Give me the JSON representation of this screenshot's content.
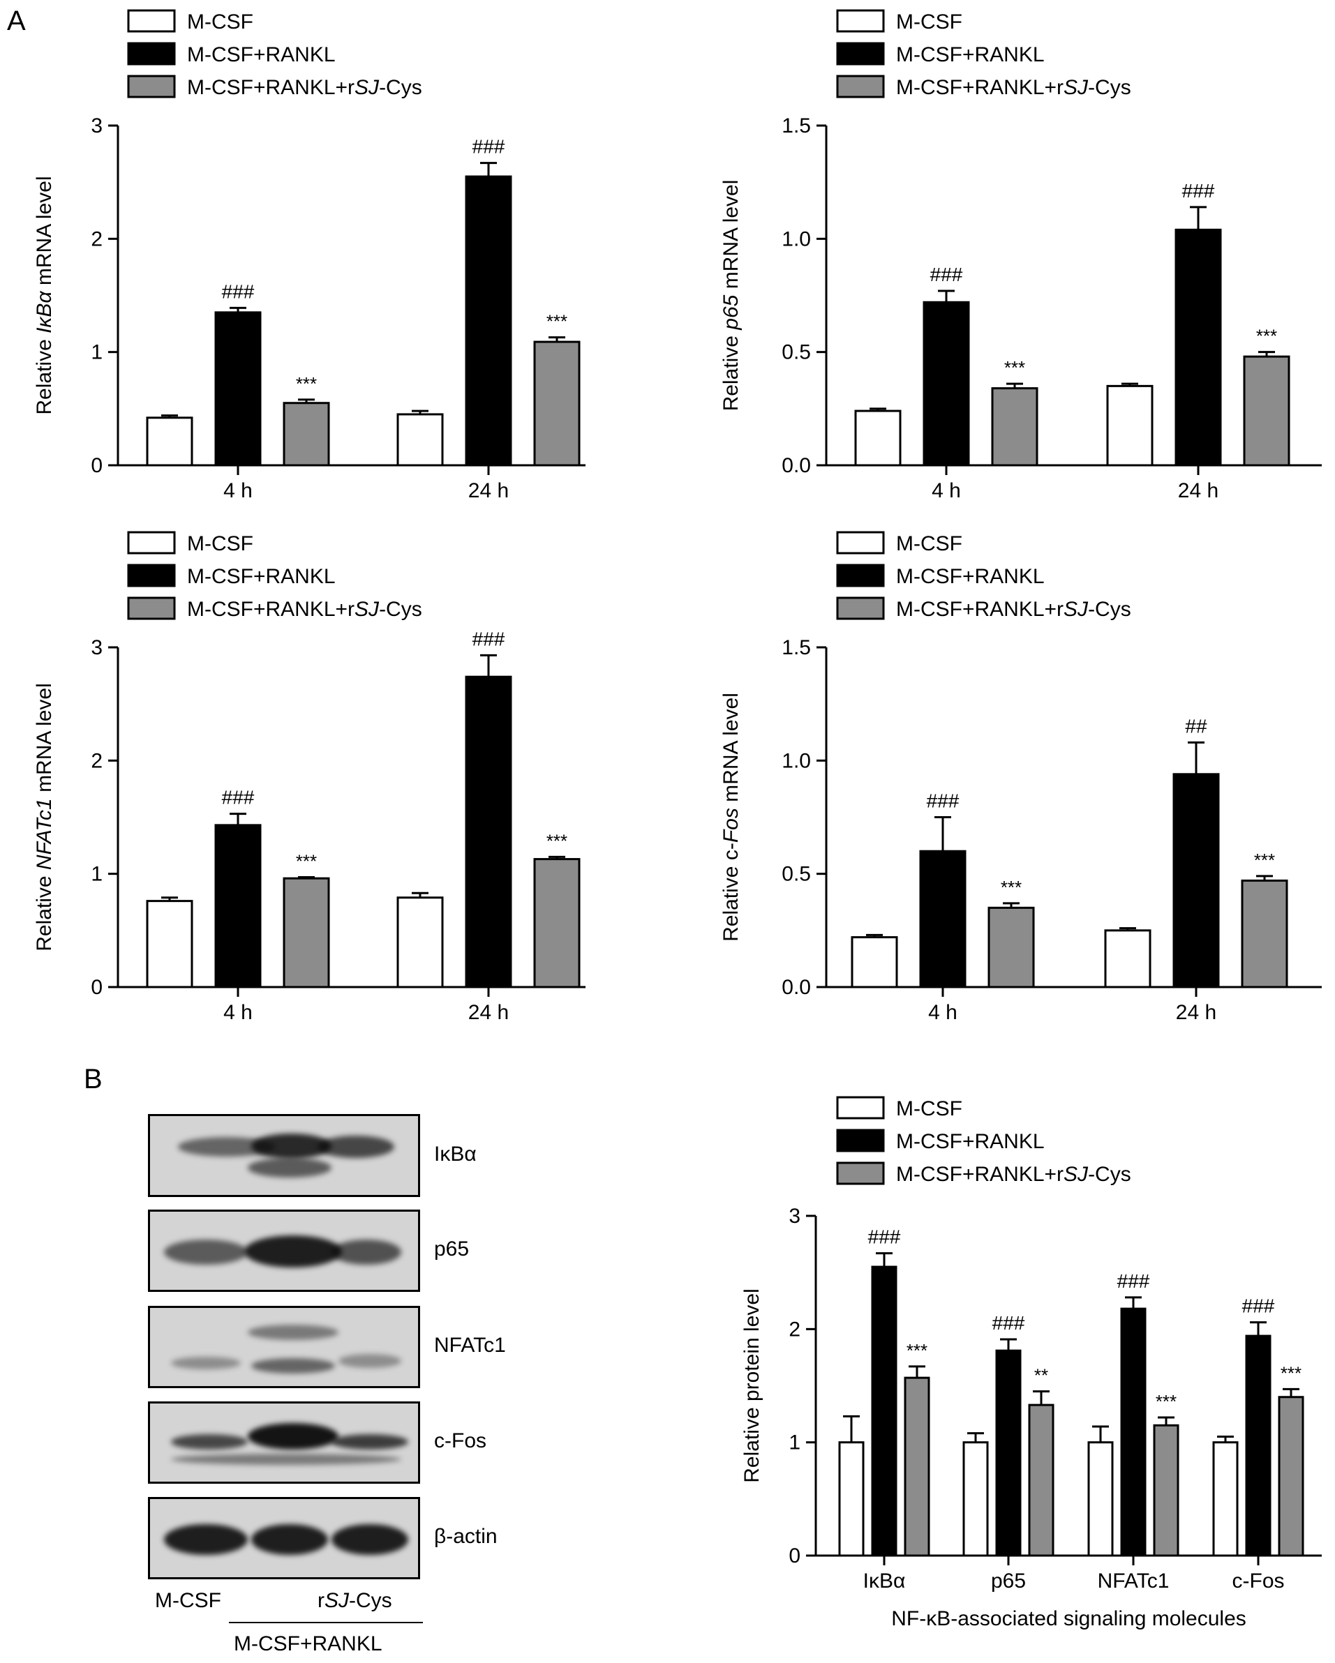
{
  "panel_labels": {
    "a": "A",
    "b": "B"
  },
  "legend": {
    "mcsf": "M-CSF",
    "rankl": "M-CSF+RANKL",
    "cys_prefix": "M-CSF+RANKL+r",
    "cys_italic": "SJ",
    "cys_suffix": "-Cys"
  },
  "colors": {
    "mcsf": "#ffffff",
    "rankl": "#000000",
    "cys": "#8c8c8c"
  },
  "chart_data": [
    {
      "type": "bar",
      "ylabel": {
        "pre": "Relative ",
        "italic": "IκBα",
        "post": " mRNA level"
      },
      "categories": [
        "4 h",
        "24 h"
      ],
      "ylim": [
        0,
        3
      ],
      "yticks": [
        "0",
        "1",
        "2",
        "3"
      ],
      "series": [
        {
          "name": "M-CSF",
          "values": [
            0.42,
            0.45
          ],
          "errors": [
            0.02,
            0.03
          ]
        },
        {
          "name": "M-CSF+RANKL",
          "values": [
            1.35,
            2.55
          ],
          "errors": [
            0.04,
            0.12
          ]
        },
        {
          "name": "M-CSF+RANKL+rSJ-Cys",
          "values": [
            0.55,
            1.09
          ],
          "errors": [
            0.03,
            0.04
          ]
        }
      ],
      "annotations": [
        [
          "",
          ""
        ],
        [
          "###",
          "###"
        ],
        [
          "***",
          "***"
        ]
      ]
    },
    {
      "type": "bar",
      "ylabel": {
        "pre": "Relative ",
        "italic": "p65",
        "post": " mRNA level"
      },
      "categories": [
        "4 h",
        "24 h"
      ],
      "ylim": [
        0,
        1.5
      ],
      "yticks": [
        "0.0",
        "0.5",
        "1.0",
        "1.5"
      ],
      "series": [
        {
          "name": "M-CSF",
          "values": [
            0.24,
            0.35
          ],
          "errors": [
            0.01,
            0.01
          ]
        },
        {
          "name": "M-CSF+RANKL",
          "values": [
            0.72,
            1.04
          ],
          "errors": [
            0.05,
            0.1
          ]
        },
        {
          "name": "M-CSF+RANKL+rSJ-Cys",
          "values": [
            0.34,
            0.48
          ],
          "errors": [
            0.02,
            0.02
          ]
        }
      ],
      "annotations": [
        [
          "",
          ""
        ],
        [
          "###",
          "###"
        ],
        [
          "***",
          "***"
        ]
      ]
    },
    {
      "type": "bar",
      "ylabel": {
        "pre": "Relative ",
        "italic": "NFATc1",
        "post": " mRNA level"
      },
      "categories": [
        "4 h",
        "24 h"
      ],
      "ylim": [
        0,
        3
      ],
      "yticks": [
        "0",
        "1",
        "2",
        "3"
      ],
      "series": [
        {
          "name": "M-CSF",
          "values": [
            0.76,
            0.79
          ],
          "errors": [
            0.03,
            0.04
          ]
        },
        {
          "name": "M-CSF+RANKL",
          "values": [
            1.43,
            2.74
          ],
          "errors": [
            0.1,
            0.19
          ]
        },
        {
          "name": "M-CSF+RANKL+rSJ-Cys",
          "values": [
            0.96,
            1.13
          ],
          "errors": [
            0.01,
            0.02
          ]
        }
      ],
      "annotations": [
        [
          "",
          ""
        ],
        [
          "###",
          "###"
        ],
        [
          "***",
          "***"
        ]
      ]
    },
    {
      "type": "bar",
      "ylabel": {
        "pre": "Relative c-",
        "italic": "Fos",
        "post": " mRNA level"
      },
      "categories": [
        "4 h",
        "24 h"
      ],
      "ylim": [
        0,
        1.5
      ],
      "yticks": [
        "0.0",
        "0.5",
        "1.0",
        "1.5"
      ],
      "series": [
        {
          "name": "M-CSF",
          "values": [
            0.22,
            0.25
          ],
          "errors": [
            0.01,
            0.01
          ]
        },
        {
          "name": "M-CSF+RANKL",
          "values": [
            0.6,
            0.94
          ],
          "errors": [
            0.15,
            0.14
          ]
        },
        {
          "name": "M-CSF+RANKL+rSJ-Cys",
          "values": [
            0.35,
            0.47
          ],
          "errors": [
            0.02,
            0.02
          ]
        }
      ],
      "annotations": [
        [
          "",
          ""
        ],
        [
          "###",
          "##"
        ],
        [
          "***",
          "***"
        ]
      ]
    },
    {
      "type": "bar",
      "ylabel": {
        "pre": "Relative protein level",
        "italic": "",
        "post": ""
      },
      "xlabel": "NF-κB-associated signaling molecules",
      "categories": [
        "IκBα",
        "p65",
        "NFATc1",
        "c-Fos"
      ],
      "ylim": [
        0,
        3
      ],
      "yticks": [
        "0",
        "1",
        "2",
        "3"
      ],
      "series": [
        {
          "name": "M-CSF",
          "values": [
            1.0,
            1.0,
            1.0,
            1.0
          ],
          "errors": [
            0.23,
            0.08,
            0.14,
            0.05
          ]
        },
        {
          "name": "M-CSF+RANKL",
          "values": [
            2.55,
            1.81,
            2.18,
            1.94
          ],
          "errors": [
            0.12,
            0.1,
            0.1,
            0.12
          ]
        },
        {
          "name": "M-CSF+RANKL+rSJ-Cys",
          "values": [
            1.57,
            1.33,
            1.15,
            1.4
          ],
          "errors": [
            0.1,
            0.12,
            0.07,
            0.07
          ]
        }
      ],
      "annotations": [
        [
          "",
          "",
          "",
          ""
        ],
        [
          "###",
          "###",
          "###",
          "###"
        ],
        [
          "***",
          "**",
          "***",
          "***"
        ]
      ]
    }
  ],
  "western_blot": {
    "proteins": [
      "IκBα",
      "p65",
      "NFATc1",
      "c-Fos",
      "β-actin"
    ],
    "lane_mcsf": "M-CSF",
    "lane_cys_prefix": "r",
    "lane_cys_italic": "SJ",
    "lane_cys_suffix": "-Cys",
    "group_label": "M-CSF+RANKL"
  }
}
